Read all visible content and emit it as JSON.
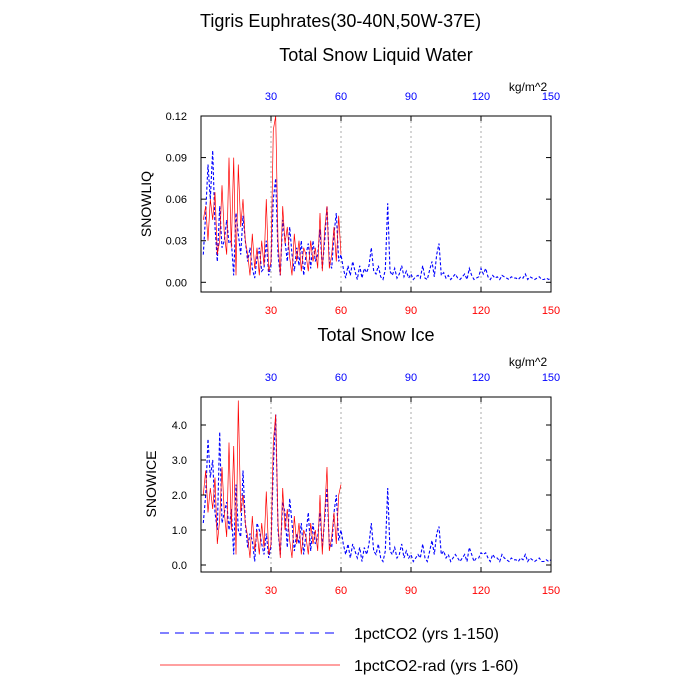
{
  "figure": {
    "title": "Tigris Euphrates(30-40N,50W-37E)",
    "colors": {
      "blue_series": "#0000ff",
      "red_series": "#ff0000",
      "grid": "#888888",
      "axis": "#000000"
    }
  },
  "legend": {
    "items": [
      {
        "label": "1pctCO2 (yrs 1-150)",
        "style": "blue-dashed"
      },
      {
        "label": "1pctCO2-rad (yrs 1-60)",
        "style": "red-solid"
      }
    ]
  },
  "chart_data": [
    {
      "type": "line",
      "title": "Total Snow Liquid Water",
      "ylabel": "SNOWLIQ",
      "units": "kg/m^2",
      "xlim": [
        0,
        150
      ],
      "ylim": [
        -0.007,
        0.12
      ],
      "yticks": [
        "0.00",
        "0.03",
        "0.06",
        "0.09",
        "0.12"
      ],
      "ytick_values": [
        0,
        0.03,
        0.06,
        0.09,
        0.12
      ],
      "bottom_xticks": [
        "30",
        "60",
        "90",
        "120",
        "150"
      ],
      "top_xticks": [
        "30",
        "60",
        "90",
        "120",
        "150"
      ],
      "xtick_values": [
        30,
        60,
        90,
        120,
        150
      ],
      "vgrid": [
        30,
        60,
        90,
        120
      ],
      "series": [
        {
          "name": "1pctCO2 (yrs 1-150)",
          "color": "#0000ff",
          "style": "dashed",
          "x": [
            1,
            2,
            3,
            4,
            5,
            6,
            7,
            8,
            9,
            10,
            11,
            12,
            13,
            14,
            15,
            16,
            17,
            18,
            19,
            20,
            21,
            22,
            23,
            24,
            25,
            26,
            27,
            28,
            29,
            30,
            31,
            32,
            33,
            34,
            35,
            36,
            37,
            38,
            39,
            40,
            41,
            42,
            43,
            44,
            45,
            46,
            47,
            48,
            49,
            50,
            51,
            52,
            53,
            54,
            55,
            56,
            57,
            58,
            59,
            60,
            61,
            62,
            63,
            64,
            65,
            66,
            67,
            68,
            69,
            70,
            71,
            72,
            73,
            74,
            75,
            76,
            77,
            78,
            79,
            80,
            81,
            82,
            83,
            84,
            85,
            86,
            87,
            88,
            89,
            90,
            91,
            92,
            93,
            94,
            95,
            96,
            97,
            98,
            99,
            100,
            101,
            102,
            103,
            104,
            105,
            106,
            107,
            108,
            109,
            110,
            111,
            112,
            113,
            114,
            115,
            116,
            117,
            118,
            119,
            120,
            121,
            122,
            123,
            124,
            125,
            126,
            127,
            128,
            129,
            130,
            131,
            132,
            133,
            134,
            135,
            136,
            137,
            138,
            139,
            140,
            141,
            142,
            143,
            144,
            145,
            146,
            147,
            148,
            149,
            150
          ],
          "y": [
            0.02,
            0.05,
            0.085,
            0.06,
            0.095,
            0.04,
            0.015,
            0.055,
            0.025,
            0.03,
            0.045,
            0.028,
            0.03,
            0.005,
            0.05,
            0.035,
            0.02,
            0.048,
            0.03,
            0.015,
            0.025,
            0.01,
            0.003,
            0.018,
            0.025,
            0.008,
            0.01,
            0.03,
            0.005,
            0.012,
            0.06,
            0.075,
            0.02,
            0.005,
            0.045,
            0.03,
            0.015,
            0.04,
            0.02,
            0.008,
            0.025,
            0.012,
            0.03,
            0.005,
            0.02,
            0.028,
            0.01,
            0.03,
            0.015,
            0.02,
            0.038,
            0.01,
            0.03,
            0.055,
            0.015,
            0.01,
            0.035,
            0.05,
            0.015,
            0.02,
            0.01,
            0.003,
            0.012,
            0.005,
            0.015,
            0.008,
            0.002,
            0.012,
            0.003,
            0.01,
            0.007,
            0.012,
            0.025,
            0.008,
            0.006,
            0.012,
            0.004,
            0.002,
            0.009,
            0.057,
            0.008,
            0.005,
            0.01,
            0.003,
            0.006,
            0.012,
            0.004,
            0.008,
            0.003,
            0.006,
            0.002,
            0.004,
            0.005,
            0.003,
            0.012,
            0.003,
            0.002,
            0.009,
            0.015,
            0.004,
            0.02,
            0.028,
            0.005,
            0.007,
            0.003,
            0.005,
            0.002,
            0.004,
            0.006,
            0.003,
            0.002,
            0.004,
            0.006,
            0.002,
            0.01,
            0.005,
            0.002,
            0.003,
            0.004,
            0.01,
            0.006,
            0.01,
            0.004,
            0.002,
            0.005,
            0.003,
            0.004,
            0.002,
            0.005,
            0.004,
            0.003,
            0.002,
            0.004,
            0.003,
            0.003,
            0.002,
            0.004,
            0.003,
            0.006,
            0.002,
            0.004,
            0.003,
            0.002,
            0.003,
            0.004,
            0.002,
            0.002,
            0.003,
            0.002,
            0.003
          ]
        },
        {
          "name": "1pctCO2-rad (yrs 1-60)",
          "color": "#ff0000",
          "style": "solid",
          "x": [
            1,
            2,
            3,
            4,
            5,
            6,
            7,
            8,
            9,
            10,
            11,
            12,
            13,
            14,
            15,
            16,
            17,
            18,
            19,
            20,
            21,
            22,
            23,
            24,
            25,
            26,
            27,
            28,
            29,
            30,
            31,
            32,
            33,
            34,
            35,
            36,
            37,
            38,
            39,
            40,
            41,
            42,
            43,
            44,
            45,
            46,
            47,
            48,
            49,
            50,
            51,
            52,
            53,
            54,
            55,
            56,
            57,
            58,
            59,
            60
          ],
          "y": [
            0.045,
            0.055,
            0.03,
            0.06,
            0.045,
            0.065,
            0.02,
            0.03,
            0.07,
            0.035,
            0.02,
            0.09,
            0.025,
            0.09,
            0.005,
            0.085,
            0.04,
            0.06,
            0.03,
            0.02,
            0.005,
            0.035,
            0.01,
            0.025,
            0.005,
            0.03,
            0.012,
            0.06,
            0.008,
            0.015,
            0.11,
            0.12,
            0.03,
            0.005,
            0.055,
            0.028,
            0.04,
            0.018,
            0.005,
            0.035,
            0.015,
            0.03,
            0.008,
            0.025,
            0.02,
            0.008,
            0.03,
            0.015,
            0.025,
            0.01,
            0.05,
            0.008,
            0.038,
            0.055,
            0.01,
            0.02,
            0.04,
            0.015,
            0.048,
            0.02
          ]
        }
      ]
    },
    {
      "type": "line",
      "title": "Total Snow Ice",
      "ylabel": "SNOWICE",
      "units": "kg/m^2",
      "xlim": [
        0,
        150
      ],
      "ylim": [
        -0.2,
        4.8
      ],
      "yticks": [
        "0.0",
        "1.0",
        "2.0",
        "3.0",
        "4.0"
      ],
      "ytick_values": [
        0,
        1,
        2,
        3,
        4
      ],
      "bottom_xticks": [
        "30",
        "60",
        "90",
        "120",
        "150"
      ],
      "top_xticks": [
        "30",
        "60",
        "90",
        "120",
        "150"
      ],
      "xtick_values": [
        30,
        60,
        90,
        120,
        150
      ],
      "vgrid": [
        30,
        60,
        90,
        120
      ],
      "series": [
        {
          "name": "1pctCO2 (yrs 1-150)",
          "color": "#0000ff",
          "style": "dashed",
          "x": [
            1,
            2,
            3,
            4,
            5,
            6,
            7,
            8,
            9,
            10,
            11,
            12,
            13,
            14,
            15,
            16,
            17,
            18,
            19,
            20,
            21,
            22,
            23,
            24,
            25,
            26,
            27,
            28,
            29,
            30,
            31,
            32,
            33,
            34,
            35,
            36,
            37,
            38,
            39,
            40,
            41,
            42,
            43,
            44,
            45,
            46,
            47,
            48,
            49,
            50,
            51,
            52,
            53,
            54,
            55,
            56,
            57,
            58,
            59,
            60,
            61,
            62,
            63,
            64,
            65,
            66,
            67,
            68,
            69,
            70,
            71,
            72,
            73,
            74,
            75,
            76,
            77,
            78,
            79,
            80,
            81,
            82,
            83,
            84,
            85,
            86,
            87,
            88,
            89,
            90,
            91,
            92,
            93,
            94,
            95,
            96,
            97,
            98,
            99,
            100,
            101,
            102,
            103,
            104,
            105,
            106,
            107,
            108,
            109,
            110,
            111,
            112,
            113,
            114,
            115,
            116,
            117,
            118,
            119,
            120,
            121,
            122,
            123,
            124,
            125,
            126,
            127,
            128,
            129,
            130,
            131,
            132,
            133,
            134,
            135,
            136,
            137,
            138,
            139,
            140,
            141,
            142,
            143,
            144,
            145,
            146,
            147,
            148,
            149,
            150
          ],
          "y": [
            1.2,
            2.0,
            3.6,
            2.5,
            3.0,
            1.5,
            1.0,
            3.8,
            1.2,
            1.5,
            1.8,
            1.0,
            1.6,
            0.3,
            2.3,
            1.0,
            0.8,
            2.7,
            1.2,
            0.5,
            0.9,
            0.7,
            0.1,
            1.2,
            1.0,
            0.6,
            0.3,
            0.9,
            0.2,
            0.5,
            2.8,
            4.3,
            1.0,
            0.3,
            1.8,
            1.5,
            0.5,
            1.9,
            1.2,
            0.4,
            0.9,
            0.6,
            1.2,
            0.3,
            0.9,
            1.5,
            0.4,
            1.2,
            0.6,
            0.8,
            1.5,
            0.5,
            1.3,
            2.2,
            0.6,
            0.5,
            1.5,
            2.0,
            0.7,
            1.0,
            0.6,
            0.3,
            0.6,
            0.2,
            0.6,
            0.4,
            0.2,
            0.5,
            0.1,
            0.5,
            0.3,
            0.6,
            1.2,
            0.4,
            0.3,
            0.6,
            0.2,
            0.1,
            0.4,
            2.2,
            0.4,
            0.3,
            0.5,
            0.2,
            0.3,
            0.6,
            0.2,
            0.4,
            0.2,
            0.3,
            0.1,
            0.2,
            0.3,
            0.2,
            0.6,
            0.2,
            0.1,
            0.4,
            0.7,
            0.3,
            0.9,
            1.1,
            0.3,
            0.4,
            0.2,
            0.3,
            0.1,
            0.2,
            0.3,
            0.2,
            0.1,
            0.2,
            0.3,
            0.1,
            0.5,
            0.3,
            0.1,
            0.2,
            0.2,
            0.35,
            0.3,
            0.35,
            0.2,
            0.1,
            0.3,
            0.2,
            0.2,
            0.1,
            0.3,
            0.2,
            0.15,
            0.1,
            0.2,
            0.15,
            0.15,
            0.1,
            0.2,
            0.15,
            0.3,
            0.1,
            0.2,
            0.15,
            0.1,
            0.15,
            0.2,
            0.1,
            0.1,
            0.15,
            0.1,
            0.15
          ]
        },
        {
          "name": "1pctCO2-rad (yrs 1-60)",
          "color": "#ff0000",
          "style": "solid",
          "x": [
            1,
            2,
            3,
            4,
            5,
            6,
            7,
            8,
            9,
            10,
            11,
            12,
            13,
            14,
            15,
            16,
            17,
            18,
            19,
            20,
            21,
            22,
            23,
            24,
            25,
            26,
            27,
            28,
            29,
            30,
            31,
            32,
            33,
            34,
            35,
            36,
            37,
            38,
            39,
            40,
            41,
            42,
            43,
            44,
            45,
            46,
            47,
            48,
            49,
            50,
            51,
            52,
            53,
            54,
            55,
            56,
            57,
            58,
            59,
            60
          ],
          "y": [
            2.0,
            2.7,
            1.5,
            2.2,
            1.6,
            2.5,
            0.6,
            1.3,
            2.8,
            1.5,
            0.8,
            3.5,
            1.0,
            3.4,
            0.3,
            4.7,
            1.5,
            2.0,
            1.2,
            0.8,
            0.2,
            1.4,
            0.4,
            1.0,
            0.3,
            1.2,
            0.5,
            2.1,
            0.3,
            0.6,
            3.5,
            4.3,
            1.2,
            0.2,
            2.2,
            1.0,
            1.6,
            0.7,
            0.2,
            1.4,
            0.6,
            1.2,
            0.3,
            1.0,
            0.8,
            0.3,
            1.2,
            0.6,
            1.0,
            0.4,
            2.0,
            0.3,
            1.5,
            2.8,
            0.4,
            0.8,
            1.5,
            0.6,
            2.0,
            2.3
          ]
        }
      ]
    }
  ]
}
